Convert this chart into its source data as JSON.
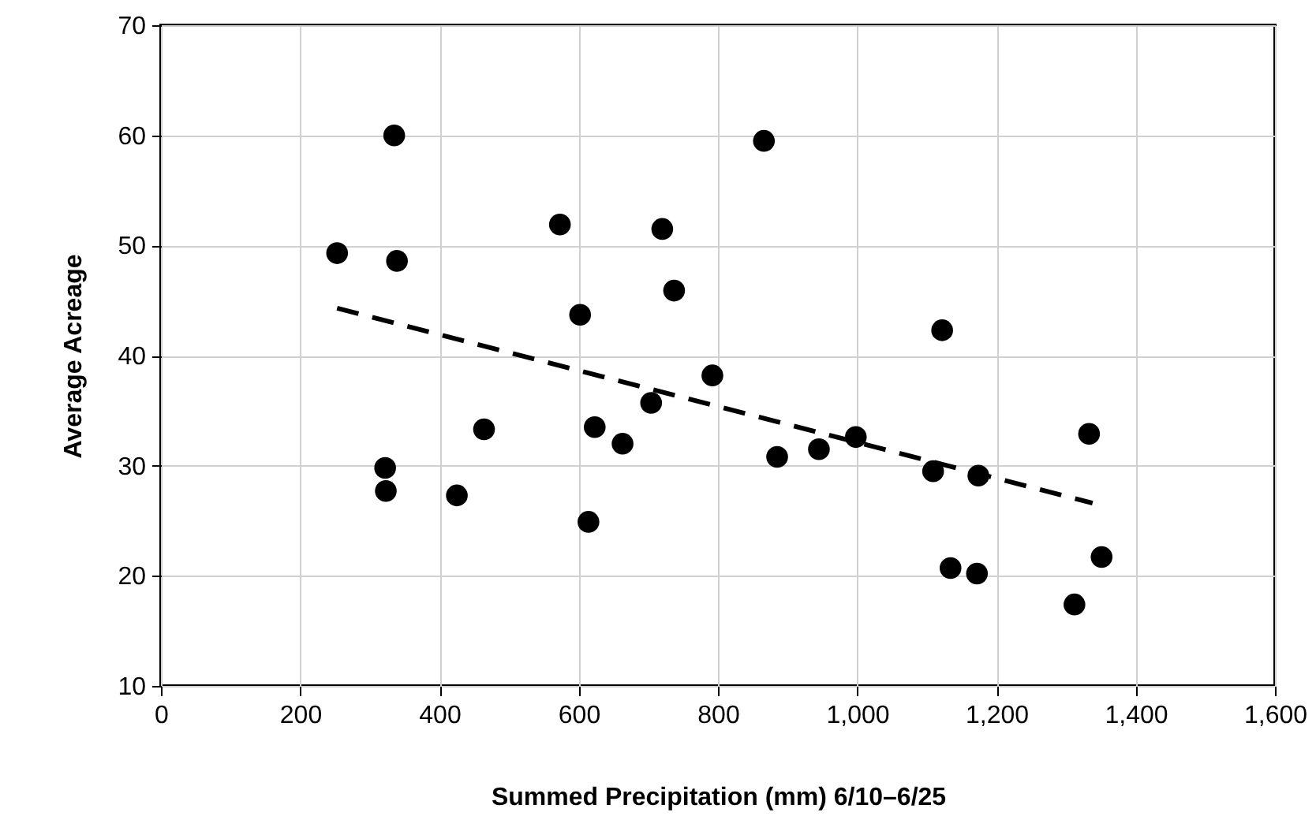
{
  "chart_data": {
    "type": "scatter",
    "xlabel": "Summed Precipitation (mm) 6/10–6/25",
    "ylabel": "Average Acreage",
    "xlim": [
      0,
      1600
    ],
    "ylim": [
      10,
      70
    ],
    "xticks": [
      0,
      200,
      400,
      600,
      800,
      {
        "value": 1000,
        "label": "1,000"
      },
      {
        "value": 1200,
        "label": "1,200"
      },
      {
        "value": 1400,
        "label": "1,400"
      },
      {
        "value": 1600,
        "label": "1,600"
      }
    ],
    "yticks": [
      10,
      20,
      30,
      40,
      50,
      60,
      70
    ],
    "grid": true,
    "series": [
      {
        "marker": "circle",
        "color": "#000000",
        "x": [
          253,
          335,
          339,
          322,
          323,
          425,
          464,
          573,
          602,
          614,
          623,
          663,
          704,
          720,
          737,
          792,
          866,
          885,
          945,
          998,
          1122,
          1109,
          1174,
          1134,
          1172,
          1333,
          1351,
          1312
        ],
        "values": [
          49.3,
          60.0,
          48.6,
          29.8,
          27.7,
          27.3,
          33.3,
          51.9,
          43.7,
          24.9,
          33.5,
          32.0,
          35.7,
          51.5,
          45.9,
          38.2,
          59.5,
          30.8,
          31.5,
          32.6,
          42.3,
          29.5,
          29.1,
          20.7,
          20.2,
          32.9,
          21.7,
          17.4
        ]
      },
      {
        "type": "line",
        "color": "#000000",
        "line_style": "dashed",
        "x": [
          253,
          1338
        ],
        "values": [
          44.3,
          26.6
        ]
      }
    ]
  }
}
